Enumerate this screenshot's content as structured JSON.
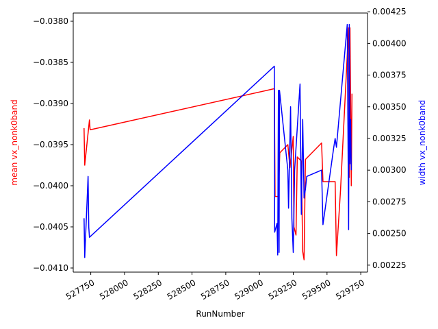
{
  "chart_data": {
    "type": "line",
    "title": "",
    "xlabel": "RunNumber",
    "xlim": [
      527620,
      529800
    ],
    "x_ticks": [
      527750,
      528000,
      528250,
      528500,
      528750,
      529000,
      529250,
      529500,
      529750
    ],
    "x_tick_labels": [
      "527750",
      "528000",
      "528250",
      "528500",
      "528750",
      "529000",
      "529250",
      "529500",
      "529750"
    ],
    "y_left": {
      "label": "mean vx_nonk0band",
      "color": "#ff0000",
      "lim": [
        -0.04105,
        -0.0379
      ],
      "ticks": [
        -0.041,
        -0.0405,
        -0.04,
        -0.0395,
        -0.039,
        -0.0385,
        -0.038
      ],
      "tick_labels": [
        "−0.0410",
        "−0.0405",
        "−0.0400",
        "−0.0395",
        "−0.0390",
        "−0.0385",
        "−0.0380"
      ]
    },
    "y_right": {
      "label": "width vx_nonk0band",
      "color": "#0000ff",
      "lim": [
        0.002195,
        0.00424
      ],
      "ticks": [
        0.00225,
        0.0025,
        0.00275,
        0.003,
        0.00325,
        0.0035,
        0.00375,
        0.004,
        0.00425
      ],
      "tick_labels": [
        "0.00225",
        "0.00250",
        "0.00275",
        "0.00300",
        "0.00325",
        "0.00350",
        "0.00375",
        "0.00400",
        "0.00425"
      ]
    },
    "series": [
      {
        "name": "mean vx_nonk0band",
        "axis": "left",
        "color": "#ff0000",
        "x": [
          527700,
          527705,
          527740,
          527745,
          529110,
          529115,
          529140,
          529150,
          529210,
          529225,
          529250,
          529255,
          529270,
          529280,
          529310,
          529320,
          529330,
          529340,
          529460,
          529470,
          529560,
          529570,
          529600,
          529660,
          529665,
          529670,
          529680,
          529685
        ],
        "y": [
          -0.0393,
          -0.03975,
          -0.0392,
          -0.03932,
          -0.03882,
          -0.04013,
          -0.04013,
          -0.0396,
          -0.0395,
          -0.03978,
          -0.0394,
          -0.0405,
          -0.0406,
          -0.03965,
          -0.0397,
          -0.0408,
          -0.0409,
          -0.03968,
          -0.03948,
          -0.03995,
          -0.03995,
          -0.04085,
          -0.04005,
          -0.03808,
          -0.0399,
          -0.03808,
          -0.04,
          -0.03888
        ]
      },
      {
        "name": "width vx_nonk0band",
        "axis": "right",
        "color": "#0000ff",
        "x": [
          527700,
          527705,
          527730,
          527735,
          527740,
          529110,
          529112,
          529130,
          529135,
          529140,
          529145,
          529148,
          529210,
          529215,
          529230,
          529240,
          529250,
          529260,
          529300,
          529310,
          529320,
          529330,
          529340,
          529350,
          529460,
          529470,
          529550,
          529560,
          529570,
          529650,
          529660,
          529665,
          529670,
          529675,
          529680
        ],
        "y": [
          0.00262,
          0.00231,
          0.00295,
          0.00255,
          0.00247,
          0.00382,
          0.00251,
          0.00258,
          0.00233,
          0.00363,
          0.00235,
          0.00363,
          0.003,
          0.0027,
          0.0035,
          0.00262,
          0.00235,
          0.003,
          0.00368,
          0.00265,
          0.0034,
          0.00278,
          0.00285,
          0.00295,
          0.003,
          0.00257,
          0.00318,
          0.00325,
          0.00318,
          0.00415,
          0.00253,
          0.00415,
          0.00305,
          0.0034,
          0.003
        ]
      }
    ]
  }
}
